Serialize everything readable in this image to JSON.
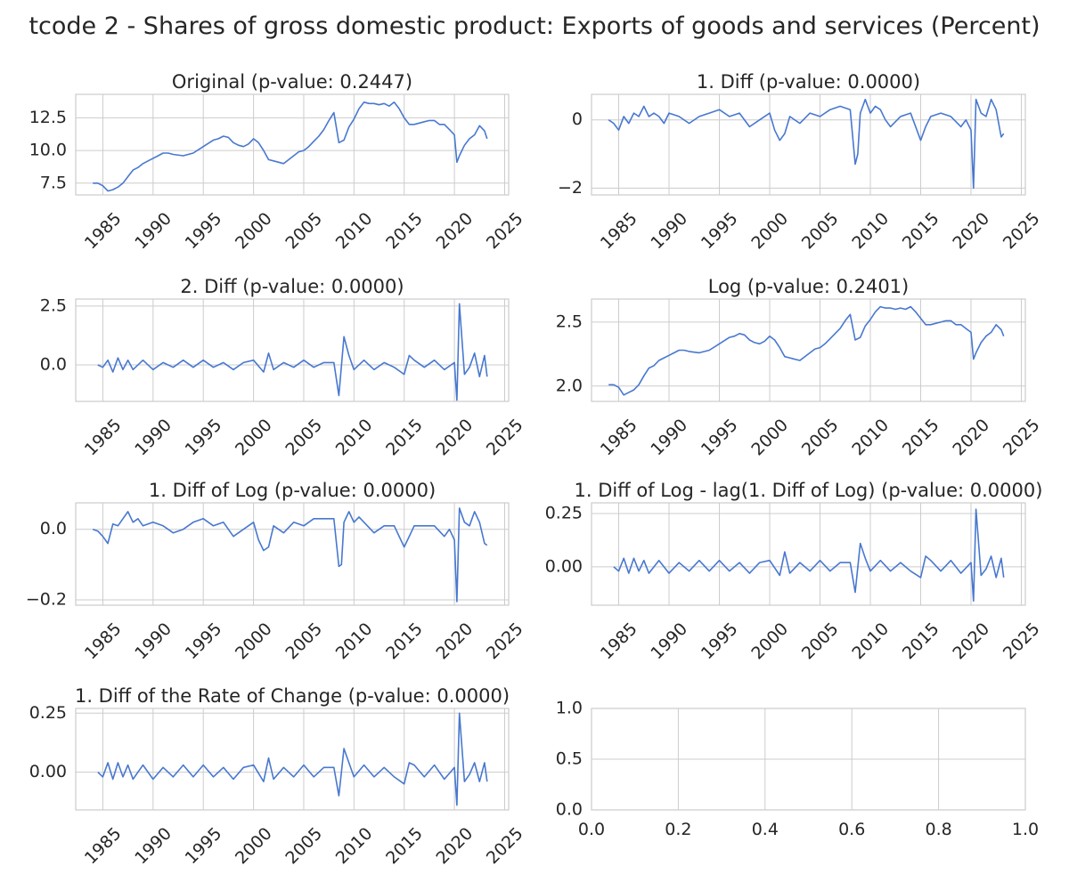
{
  "figure_title": "tcode 2 - Shares of gross domestic product: Exports of goods and services (Percent)",
  "colors": {
    "line": "#4878cf",
    "grid": "#cccccc",
    "text": "#262626"
  },
  "chart_data": [
    {
      "type": "line",
      "title": "Original (p-value: 0.2447)",
      "xlim": [
        1982.3,
        2025.4
      ],
      "ylim": [
        6.6,
        14.3
      ],
      "xticks": [
        1985,
        1990,
        1995,
        2000,
        2005,
        2010,
        2015,
        2020,
        2025
      ],
      "yticks": [
        {
          "value": 7.5,
          "label": "7.5"
        },
        {
          "value": 10.0,
          "label": "10.0"
        },
        {
          "value": 12.5,
          "label": "12.5"
        }
      ],
      "x": [
        1984.0,
        1984.5,
        1985.0,
        1985.5,
        1986.0,
        1986.5,
        1987.0,
        1987.5,
        1988.0,
        1988.5,
        1989.0,
        1989.5,
        1990.0,
        1990.5,
        1991.0,
        1991.5,
        1992.0,
        1993.0,
        1994.0,
        1995.0,
        1996.0,
        1996.5,
        1997.0,
        1997.5,
        1998.0,
        1998.5,
        1999.0,
        1999.5,
        2000.0,
        2000.5,
        2001.0,
        2001.5,
        2002.0,
        2002.5,
        2003.0,
        2003.5,
        2004.0,
        2004.5,
        2005.0,
        2005.5,
        2006.0,
        2006.5,
        2007.0,
        2007.5,
        2008.0,
        2008.5,
        2009.0,
        2009.5,
        2010.0,
        2010.5,
        2011.0,
        2011.5,
        2012.0,
        2012.5,
        2013.0,
        2013.5,
        2014.0,
        2014.5,
        2015.0,
        2015.5,
        2016.0,
        2016.5,
        2017.0,
        2017.5,
        2018.0,
        2018.5,
        2019.0,
        2019.5,
        2020.0,
        2020.25,
        2020.5,
        2021.0,
        2021.5,
        2022.0,
        2022.5,
        2023.0,
        2023.25
      ],
      "values": [
        7.5,
        7.5,
        7.3,
        6.9,
        7.0,
        7.2,
        7.5,
        8.0,
        8.5,
        8.7,
        9.0,
        9.2,
        9.4,
        9.6,
        9.8,
        9.8,
        9.7,
        9.6,
        9.8,
        10.3,
        10.8,
        10.9,
        11.1,
        11.0,
        10.6,
        10.4,
        10.3,
        10.5,
        10.9,
        10.6,
        10.0,
        9.3,
        9.2,
        9.1,
        9.0,
        9.3,
        9.6,
        9.9,
        10.0,
        10.3,
        10.7,
        11.1,
        11.6,
        12.3,
        12.9,
        10.6,
        10.8,
        11.8,
        12.4,
        13.2,
        13.7,
        13.6,
        13.6,
        13.5,
        13.6,
        13.4,
        13.7,
        13.2,
        12.5,
        12.0,
        12.0,
        12.1,
        12.2,
        12.3,
        12.3,
        12.0,
        12.0,
        11.6,
        11.2,
        9.1,
        9.6,
        10.4,
        10.9,
        11.2,
        11.9,
        11.5,
        10.9
      ]
    },
    {
      "type": "line",
      "title": "1. Diff (p-value: 0.0000)",
      "xlim": [
        1982.3,
        2025.4
      ],
      "ylim": [
        -2.2,
        0.75
      ],
      "xticks": [
        1985,
        1990,
        1995,
        2000,
        2005,
        2010,
        2015,
        2020,
        2025
      ],
      "yticks": [
        {
          "value": -2,
          "label": "−2"
        },
        {
          "value": 0,
          "label": "0"
        }
      ],
      "x": [
        1984.0,
        1984.5,
        1985.0,
        1985.5,
        1986.0,
        1986.5,
        1987.0,
        1987.5,
        1988.0,
        1988.5,
        1989.0,
        1989.5,
        1990.0,
        1991.0,
        1992.0,
        1993.0,
        1994.0,
        1995.0,
        1996.0,
        1997.0,
        1998.0,
        1999.0,
        2000.0,
        2000.5,
        2001.0,
        2001.5,
        2002.0,
        2003.0,
        2004.0,
        2005.0,
        2006.0,
        2007.0,
        2008.0,
        2008.5,
        2008.75,
        2009.0,
        2009.5,
        2010.0,
        2010.5,
        2011.0,
        2011.5,
        2012.0,
        2013.0,
        2014.0,
        2015.0,
        2015.5,
        2016.0,
        2017.0,
        2018.0,
        2019.0,
        2019.5,
        2020.0,
        2020.25,
        2020.5,
        2021.0,
        2021.5,
        2022.0,
        2022.5,
        2023.0,
        2023.25
      ],
      "values": [
        0.0,
        -0.1,
        -0.3,
        0.1,
        -0.1,
        0.2,
        0.1,
        0.4,
        0.1,
        0.2,
        0.1,
        -0.1,
        0.2,
        0.1,
        -0.1,
        0.1,
        0.2,
        0.3,
        0.1,
        0.2,
        -0.2,
        0.0,
        0.2,
        -0.3,
        -0.6,
        -0.4,
        0.1,
        -0.1,
        0.2,
        0.1,
        0.3,
        0.4,
        0.3,
        -1.3,
        -1.0,
        0.2,
        0.6,
        0.2,
        0.4,
        0.3,
        0.0,
        -0.2,
        0.1,
        0.2,
        -0.6,
        -0.2,
        0.1,
        0.2,
        0.1,
        -0.2,
        0.0,
        -0.3,
        -2.0,
        0.6,
        0.2,
        0.1,
        0.6,
        0.3,
        -0.5,
        -0.4
      ]
    },
    {
      "type": "line",
      "title": "2. Diff (p-value: 0.0000)",
      "xlim": [
        1982.3,
        2025.4
      ],
      "ylim": [
        -1.55,
        2.8
      ],
      "xticks": [
        1985,
        1990,
        1995,
        2000,
        2005,
        2010,
        2015,
        2020,
        2025
      ],
      "yticks": [
        {
          "value": 0.0,
          "label": "0.0"
        },
        {
          "value": 2.5,
          "label": "2.5"
        }
      ],
      "x": [
        1984.5,
        1985.0,
        1985.5,
        1986.0,
        1986.5,
        1987.0,
        1987.5,
        1988.0,
        1989.0,
        1990.0,
        1991.0,
        1992.0,
        1993.0,
        1994.0,
        1995.0,
        1996.0,
        1997.0,
        1998.0,
        1999.0,
        2000.0,
        2001.0,
        2001.5,
        2002.0,
        2003.0,
        2004.0,
        2005.0,
        2006.0,
        2007.0,
        2008.0,
        2008.5,
        2009.0,
        2009.5,
        2010.0,
        2011.0,
        2012.0,
        2013.0,
        2014.0,
        2015.0,
        2015.5,
        2016.0,
        2017.0,
        2018.0,
        2019.0,
        2020.0,
        2020.25,
        2020.5,
        2021.0,
        2021.5,
        2022.0,
        2022.5,
        2023.0,
        2023.25
      ],
      "values": [
        0.0,
        -0.1,
        0.2,
        -0.3,
        0.3,
        -0.2,
        0.2,
        -0.2,
        0.2,
        -0.2,
        0.1,
        -0.1,
        0.2,
        -0.1,
        0.2,
        -0.1,
        0.1,
        -0.2,
        0.1,
        0.2,
        -0.3,
        0.5,
        -0.2,
        0.1,
        -0.1,
        0.2,
        -0.1,
        0.1,
        0.1,
        -1.3,
        1.2,
        0.4,
        -0.2,
        0.2,
        -0.2,
        0.1,
        -0.1,
        -0.4,
        0.4,
        0.2,
        -0.1,
        0.2,
        -0.2,
        0.1,
        -1.5,
        2.6,
        -0.4,
        -0.1,
        0.5,
        -0.5,
        0.4,
        -0.5
      ]
    },
    {
      "type": "line",
      "title": "Log (p-value: 0.2401)",
      "xlim": [
        1982.3,
        2025.4
      ],
      "ylim": [
        1.88,
        2.68
      ],
      "xticks": [
        1985,
        1990,
        1995,
        2000,
        2005,
        2010,
        2015,
        2020,
        2025
      ],
      "yticks": [
        {
          "value": 2.0,
          "label": "2.0"
        },
        {
          "value": 2.5,
          "label": "2.5"
        }
      ],
      "x": [
        1984.0,
        1984.5,
        1985.0,
        1985.5,
        1986.0,
        1986.5,
        1987.0,
        1987.5,
        1988.0,
        1988.5,
        1989.0,
        1989.5,
        1990.0,
        1990.5,
        1991.0,
        1991.5,
        1992.0,
        1993.0,
        1994.0,
        1995.0,
        1996.0,
        1996.5,
        1997.0,
        1997.5,
        1998.0,
        1998.5,
        1999.0,
        1999.5,
        2000.0,
        2000.5,
        2001.0,
        2001.5,
        2002.0,
        2002.5,
        2003.0,
        2003.5,
        2004.0,
        2004.5,
        2005.0,
        2005.5,
        2006.0,
        2006.5,
        2007.0,
        2007.5,
        2008.0,
        2008.5,
        2009.0,
        2009.5,
        2010.0,
        2010.5,
        2011.0,
        2011.5,
        2012.0,
        2012.5,
        2013.0,
        2013.5,
        2014.0,
        2014.5,
        2015.0,
        2015.5,
        2016.0,
        2016.5,
        2017.0,
        2017.5,
        2018.0,
        2018.5,
        2019.0,
        2019.5,
        2020.0,
        2020.25,
        2020.5,
        2021.0,
        2021.5,
        2022.0,
        2022.5,
        2023.0,
        2023.25
      ],
      "values": [
        2.01,
        2.01,
        1.99,
        1.93,
        1.95,
        1.97,
        2.01,
        2.08,
        2.14,
        2.16,
        2.2,
        2.22,
        2.24,
        2.26,
        2.28,
        2.28,
        2.27,
        2.26,
        2.28,
        2.33,
        2.38,
        2.39,
        2.41,
        2.4,
        2.36,
        2.34,
        2.33,
        2.35,
        2.39,
        2.36,
        2.3,
        2.23,
        2.22,
        2.21,
        2.2,
        2.23,
        2.26,
        2.29,
        2.3,
        2.33,
        2.37,
        2.41,
        2.45,
        2.51,
        2.56,
        2.36,
        2.38,
        2.47,
        2.52,
        2.58,
        2.62,
        2.61,
        2.61,
        2.6,
        2.61,
        2.6,
        2.62,
        2.58,
        2.53,
        2.48,
        2.48,
        2.49,
        2.5,
        2.51,
        2.51,
        2.48,
        2.48,
        2.45,
        2.42,
        2.21,
        2.26,
        2.34,
        2.39,
        2.42,
        2.48,
        2.44,
        2.39
      ]
    },
    {
      "type": "line",
      "title": "1. Diff of Log (p-value: 0.0000)",
      "xlim": [
        1982.3,
        2025.4
      ],
      "ylim": [
        -0.215,
        0.075
      ],
      "xticks": [
        1985,
        1990,
        1995,
        2000,
        2005,
        2010,
        2015,
        2020,
        2025
      ],
      "yticks": [
        {
          "value": -0.2,
          "label": "−0.2"
        },
        {
          "value": 0.0,
          "label": "0.0"
        }
      ],
      "x": [
        1984.0,
        1984.5,
        1985.0,
        1985.5,
        1986.0,
        1986.5,
        1987.0,
        1987.5,
        1988.0,
        1988.5,
        1989.0,
        1990.0,
        1991.0,
        1992.0,
        1993.0,
        1994.0,
        1995.0,
        1996.0,
        1997.0,
        1998.0,
        1999.0,
        2000.0,
        2000.5,
        2001.0,
        2001.5,
        2002.0,
        2003.0,
        2004.0,
        2005.0,
        2006.0,
        2007.0,
        2008.0,
        2008.5,
        2008.75,
        2009.0,
        2009.5,
        2010.0,
        2010.5,
        2011.0,
        2012.0,
        2013.0,
        2014.0,
        2015.0,
        2015.5,
        2016.0,
        2017.0,
        2018.0,
        2019.0,
        2019.5,
        2020.0,
        2020.25,
        2020.5,
        2021.0,
        2021.5,
        2022.0,
        2022.5,
        2023.0,
        2023.25
      ],
      "values": [
        0.0,
        -0.005,
        -0.02,
        -0.04,
        0.015,
        0.01,
        0.03,
        0.05,
        0.02,
        0.03,
        0.01,
        0.02,
        0.01,
        -0.01,
        0.0,
        0.02,
        0.03,
        0.01,
        0.02,
        -0.02,
        0.0,
        0.02,
        -0.03,
        -0.06,
        -0.05,
        0.01,
        -0.01,
        0.02,
        0.01,
        0.03,
        0.03,
        0.03,
        -0.105,
        -0.1,
        0.02,
        0.05,
        0.02,
        0.035,
        0.02,
        -0.01,
        0.01,
        0.01,
        -0.05,
        -0.02,
        0.01,
        0.01,
        0.01,
        -0.02,
        0.0,
        -0.03,
        -0.205,
        0.06,
        0.02,
        0.01,
        0.05,
        0.02,
        -0.04,
        -0.045
      ]
    },
    {
      "type": "line",
      "title": "1. Diff of Log - lag(1. Diff of Log) (p-value: 0.0000)",
      "xlim": [
        1982.3,
        2025.4
      ],
      "ylim": [
        -0.18,
        0.3
      ],
      "xticks": [
        1985,
        1990,
        1995,
        2000,
        2005,
        2010,
        2015,
        2020,
        2025
      ],
      "yticks": [
        {
          "value": 0.0,
          "label": "0.00"
        },
        {
          "value": 0.25,
          "label": "0.25"
        }
      ],
      "x": [
        1984.5,
        1985.0,
        1985.5,
        1986.0,
        1986.5,
        1987.0,
        1987.5,
        1988.0,
        1989.0,
        1990.0,
        1991.0,
        1992.0,
        1993.0,
        1994.0,
        1995.0,
        1996.0,
        1997.0,
        1998.0,
        1999.0,
        2000.0,
        2001.0,
        2001.5,
        2002.0,
        2003.0,
        2004.0,
        2005.0,
        2006.0,
        2007.0,
        2008.0,
        2008.5,
        2009.0,
        2009.5,
        2010.0,
        2011.0,
        2012.0,
        2013.0,
        2014.0,
        2015.0,
        2015.5,
        2016.0,
        2017.0,
        2018.0,
        2019.0,
        2020.0,
        2020.25,
        2020.5,
        2021.0,
        2021.5,
        2022.0,
        2022.5,
        2023.0,
        2023.25
      ],
      "values": [
        0.0,
        -0.02,
        0.04,
        -0.03,
        0.04,
        -0.02,
        0.03,
        -0.03,
        0.03,
        -0.03,
        0.02,
        -0.02,
        0.03,
        -0.02,
        0.03,
        -0.02,
        0.02,
        -0.03,
        0.02,
        0.03,
        -0.04,
        0.07,
        -0.03,
        0.02,
        -0.02,
        0.03,
        -0.02,
        0.02,
        0.02,
        -0.12,
        0.11,
        0.04,
        -0.02,
        0.03,
        -0.02,
        0.02,
        -0.02,
        -0.05,
        0.05,
        0.03,
        -0.02,
        0.03,
        -0.03,
        0.02,
        -0.16,
        0.27,
        -0.04,
        -0.01,
        0.05,
        -0.05,
        0.04,
        -0.05
      ]
    },
    {
      "type": "line",
      "title": "1. Diff of the Rate of Change (p-value: 0.0000)",
      "xlim": [
        1982.3,
        2025.4
      ],
      "ylim": [
        -0.16,
        0.27
      ],
      "xticks": [
        1985,
        1990,
        1995,
        2000,
        2005,
        2010,
        2015,
        2020,
        2025
      ],
      "yticks": [
        {
          "value": 0.0,
          "label": "0.00"
        },
        {
          "value": 0.25,
          "label": "0.25"
        }
      ],
      "x": [
        1984.5,
        1985.0,
        1985.5,
        1986.0,
        1986.5,
        1987.0,
        1987.5,
        1988.0,
        1989.0,
        1990.0,
        1991.0,
        1992.0,
        1993.0,
        1994.0,
        1995.0,
        1996.0,
        1997.0,
        1998.0,
        1999.0,
        2000.0,
        2001.0,
        2001.5,
        2002.0,
        2003.0,
        2004.0,
        2005.0,
        2006.0,
        2007.0,
        2008.0,
        2008.5,
        2009.0,
        2009.5,
        2010.0,
        2011.0,
        2012.0,
        2013.0,
        2014.0,
        2015.0,
        2015.5,
        2016.0,
        2017.0,
        2018.0,
        2019.0,
        2020.0,
        2020.25,
        2020.5,
        2021.0,
        2021.5,
        2022.0,
        2022.5,
        2023.0,
        2023.25
      ],
      "values": [
        0.0,
        -0.02,
        0.04,
        -0.03,
        0.04,
        -0.02,
        0.03,
        -0.03,
        0.03,
        -0.03,
        0.02,
        -0.02,
        0.03,
        -0.02,
        0.03,
        -0.02,
        0.02,
        -0.03,
        0.02,
        0.03,
        -0.04,
        0.06,
        -0.03,
        0.02,
        -0.02,
        0.03,
        -0.02,
        0.02,
        0.02,
        -0.1,
        0.1,
        0.04,
        -0.02,
        0.03,
        -0.02,
        0.02,
        -0.02,
        -0.05,
        0.04,
        0.03,
        -0.02,
        0.03,
        -0.03,
        0.02,
        -0.14,
        0.25,
        -0.04,
        -0.01,
        0.04,
        -0.04,
        0.04,
        -0.04
      ]
    },
    {
      "type": "line",
      "title": "",
      "empty": true,
      "xlim": [
        0.0,
        1.0
      ],
      "ylim": [
        0.0,
        1.0
      ],
      "xticks": [
        {
          "value": 0.0,
          "label": "0.0"
        },
        {
          "value": 0.2,
          "label": "0.2"
        },
        {
          "value": 0.4,
          "label": "0.4"
        },
        {
          "value": 0.6,
          "label": "0.6"
        },
        {
          "value": 0.8,
          "label": "0.8"
        },
        {
          "value": 1.0,
          "label": "1.0"
        }
      ],
      "yticks": [
        {
          "value": 0.0,
          "label": "0.0"
        },
        {
          "value": 0.5,
          "label": "0.5"
        },
        {
          "value": 1.0,
          "label": "1.0"
        }
      ],
      "x": [],
      "values": []
    }
  ]
}
